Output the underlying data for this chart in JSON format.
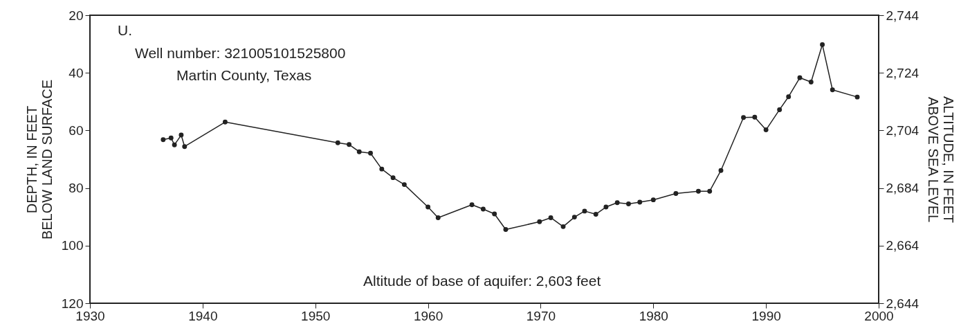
{
  "chart_data": {
    "type": "line",
    "ylabel": "DEPTH, IN FEET\nBELOW LAND SURFACE",
    "y2label": "ALTITUDE, IN FEET\nABOVE SEA LEVEL",
    "annotations": [
      "U.",
      "Well number: 321005101525800",
      "Martin County, Texas",
      "Altitude of base of aquifer: 2,603 feet"
    ],
    "xlim": [
      1930,
      2000
    ],
    "xticks": [
      1930,
      1940,
      1950,
      1960,
      1970,
      1980,
      1990,
      2000
    ],
    "ylim": [
      120,
      20
    ],
    "yticks": [
      20,
      40,
      60,
      80,
      100,
      120
    ],
    "y2lim": [
      2644,
      2744
    ],
    "y2ticks": [
      {
        "value": 2644,
        "label": "2,644"
      },
      {
        "value": 2664,
        "label": "2,664"
      },
      {
        "value": 2684,
        "label": "2,684"
      },
      {
        "value": 2704,
        "label": "2,704"
      },
      {
        "value": 2724,
        "label": "2,724"
      },
      {
        "value": 2744,
        "label": "2,744"
      }
    ],
    "marker": "circle",
    "series": [
      {
        "color": "#222222",
        "x": [
          1936.5,
          1937.2,
          1937.5,
          1938.1,
          1938.4,
          1942.0,
          1952.0,
          1953.0,
          1953.9,
          1954.9,
          1955.9,
          1956.9,
          1957.9,
          1960.0,
          1960.9,
          1963.9,
          1964.9,
          1965.9,
          1966.9,
          1969.9,
          1970.9,
          1972.0,
          1973.0,
          1973.9,
          1974.9,
          1975.8,
          1976.8,
          1977.8,
          1978.8,
          1980.0,
          1982.0,
          1984.0,
          1985.0,
          1986.0,
          1988.0,
          1989.0,
          1990.0,
          1991.2,
          1992.0,
          1993.0,
          1994.0,
          1995.0,
          1995.9,
          1998.1
        ],
        "values": [
          63.2,
          62.6,
          65.0,
          61.6,
          65.6,
          57.1,
          64.3,
          64.9,
          67.4,
          67.9,
          73.4,
          76.4,
          78.8,
          86.6,
          90.3,
          85.8,
          87.3,
          89.0,
          94.4,
          91.7,
          90.3,
          93.4,
          90.1,
          88.0,
          89.1,
          86.6,
          85.1,
          85.5,
          84.9,
          84.1,
          81.9,
          81.1,
          81.1,
          73.9,
          55.5,
          55.4,
          59.8,
          52.8,
          48.3,
          41.7,
          43.2,
          30.2,
          45.9,
          48.4
        ]
      }
    ]
  }
}
